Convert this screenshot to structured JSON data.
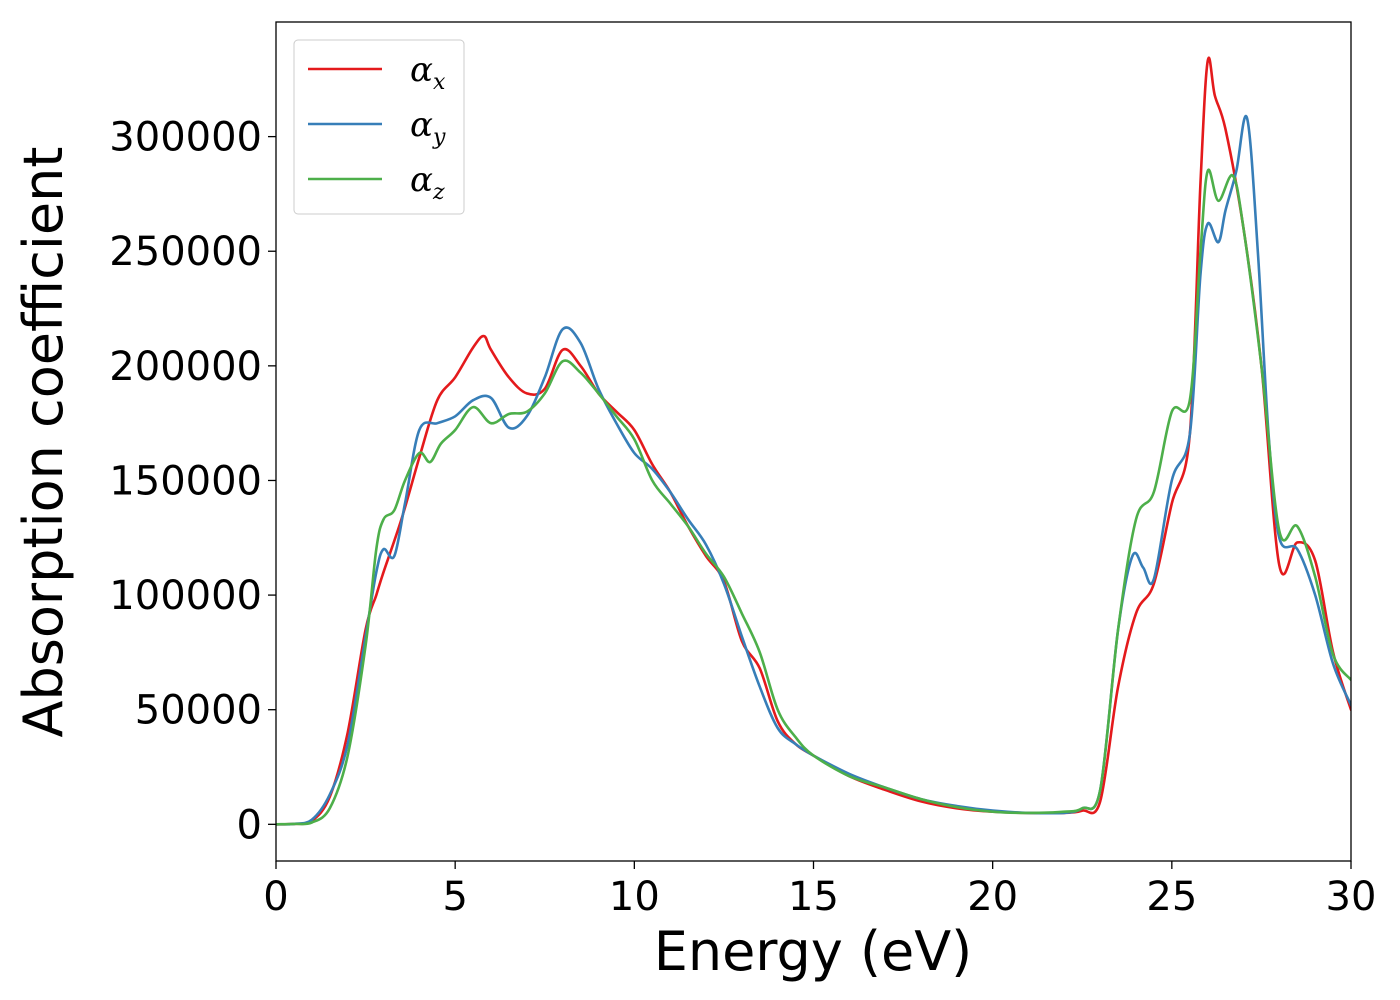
{
  "chart_data": {
    "type": "line",
    "xlabel": "Energy (eV)",
    "ylabel": "Absorption coefficient",
    "xlim": [
      0,
      30
    ],
    "ylim": [
      -16000,
      350000
    ],
    "xticks": [
      "0",
      "5",
      "10",
      "15",
      "20",
      "25",
      "30"
    ],
    "yticks": [
      "0",
      "50000",
      "100000",
      "150000",
      "200000",
      "250000",
      "300000"
    ],
    "grid": false,
    "legend_position": "upper-left",
    "series": [
      {
        "name": "α_x",
        "legend_base": "α",
        "legend_sub": "x",
        "color": "#e41a1c",
        "x": [
          0,
          0.5,
          1.0,
          1.5,
          2.0,
          2.5,
          2.8,
          3.0,
          3.5,
          4.0,
          4.5,
          5.0,
          5.5,
          5.8,
          6.0,
          6.5,
          7.0,
          7.5,
          8.0,
          8.5,
          9.0,
          9.5,
          10.0,
          10.5,
          11.0,
          11.5,
          12.0,
          12.5,
          13.0,
          13.5,
          14.0,
          14.5,
          15.0,
          16.0,
          17.0,
          18.0,
          19.0,
          20.0,
          21.0,
          22.0,
          22.5,
          23.0,
          23.5,
          24.0,
          24.5,
          25.0,
          25.5,
          25.8,
          26.0,
          26.2,
          26.5,
          27.0,
          27.5,
          28.0,
          28.5,
          29.0,
          29.5,
          30.0
        ],
        "y": [
          0,
          200,
          1500,
          12000,
          40000,
          85000,
          100000,
          110000,
          133000,
          160000,
          185000,
          195000,
          208000,
          213000,
          207000,
          195000,
          188000,
          190000,
          207000,
          200000,
          188000,
          180000,
          172000,
          157000,
          145000,
          130000,
          117000,
          106000,
          80000,
          68000,
          45000,
          35000,
          30000,
          21000,
          15000,
          10000,
          7000,
          5500,
          5000,
          5000,
          6000,
          10000,
          60000,
          92000,
          105000,
          140000,
          170000,
          280000,
          333000,
          318000,
          303000,
          260000,
          200000,
          113000,
          123000,
          115000,
          75000,
          50000
        ]
      },
      {
        "name": "α_y",
        "legend_base": "α",
        "legend_sub": "y",
        "color": "#377eb8",
        "x": [
          0,
          0.5,
          1.0,
          1.5,
          2.0,
          2.5,
          2.8,
          3.0,
          3.3,
          3.6,
          4.0,
          4.5,
          5.0,
          5.5,
          6.0,
          6.5,
          7.0,
          7.5,
          8.0,
          8.5,
          9.0,
          9.5,
          10.0,
          10.5,
          11.0,
          11.5,
          12.0,
          12.5,
          13.0,
          13.5,
          14.0,
          14.5,
          15.0,
          16.0,
          17.0,
          18.0,
          19.0,
          20.0,
          21.0,
          22.0,
          22.5,
          23.0,
          23.5,
          23.9,
          24.2,
          24.5,
          25.0,
          25.5,
          25.8,
          26.0,
          26.3,
          26.5,
          26.8,
          27.1,
          27.4,
          27.7,
          28.0,
          28.5,
          29.0,
          29.5,
          30.0
        ],
        "y": [
          0,
          200,
          2000,
          13000,
          35000,
          82000,
          110000,
          120000,
          117000,
          140000,
          172000,
          175000,
          178000,
          185000,
          186000,
          173000,
          178000,
          195000,
          216000,
          210000,
          190000,
          175000,
          162000,
          155000,
          145000,
          133000,
          122000,
          105000,
          82000,
          60000,
          42000,
          35000,
          30000,
          22000,
          16000,
          11000,
          8000,
          6000,
          5000,
          5000,
          7000,
          15000,
          85000,
          117000,
          112000,
          107000,
          150000,
          170000,
          240000,
          262000,
          254000,
          268000,
          285000,
          308000,
          250000,
          170000,
          125000,
          120000,
          100000,
          70000,
          52000
        ]
      },
      {
        "name": "α_z",
        "legend_base": "α",
        "legend_sub": "z",
        "color": "#4daf4a",
        "x": [
          0,
          0.5,
          1.0,
          1.5,
          2.0,
          2.5,
          2.8,
          3.0,
          3.3,
          3.6,
          4.0,
          4.3,
          4.6,
          5.0,
          5.5,
          6.0,
          6.5,
          7.0,
          7.5,
          8.0,
          8.5,
          9.0,
          9.5,
          10.0,
          10.5,
          11.0,
          11.5,
          12.0,
          12.5,
          13.0,
          13.5,
          14.0,
          14.5,
          15.0,
          16.0,
          17.0,
          18.0,
          19.0,
          20.0,
          21.0,
          22.0,
          22.5,
          23.0,
          23.5,
          24.0,
          24.5,
          25.0,
          25.5,
          25.8,
          26.0,
          26.3,
          26.7,
          27.0,
          27.5,
          28.0,
          28.5,
          29.0,
          29.5,
          30.0
        ],
        "y": [
          0,
          200,
          800,
          7000,
          30000,
          78000,
          120000,
          133000,
          137000,
          150000,
          162000,
          158000,
          166000,
          172000,
          182000,
          175000,
          179000,
          180000,
          188000,
          202000,
          197000,
          188000,
          178000,
          168000,
          150000,
          140000,
          130000,
          118000,
          108000,
          92000,
          75000,
          50000,
          38000,
          30000,
          21000,
          16000,
          11000,
          7500,
          5500,
          5000,
          5500,
          7000,
          15000,
          85000,
          133000,
          145000,
          180000,
          185000,
          250000,
          285000,
          272000,
          283000,
          260000,
          200000,
          128000,
          130000,
          108000,
          74000,
          63000
        ]
      }
    ]
  }
}
